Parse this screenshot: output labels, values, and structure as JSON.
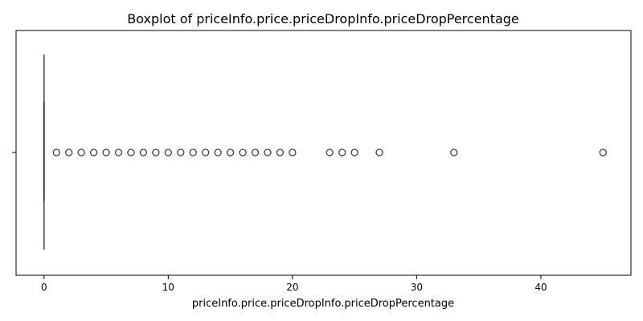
{
  "chart_data": {
    "type": "boxplot",
    "title": "Boxplot of priceInfo.price.priceDropInfo.priceDropPercentage",
    "xlabel": "priceInfo.price.priceDropInfo.priceDropPercentage",
    "ylabel": "",
    "orientation": "horizontal",
    "xlim": [
      -2.25,
      47.25
    ],
    "xticks": [
      0,
      10,
      20,
      30,
      40
    ],
    "xtick_labels": [
      "0",
      "10",
      "20",
      "30",
      "40"
    ],
    "grid": false,
    "box": {
      "q1": 0,
      "median": 0,
      "q3": 0,
      "whisker_low": 0,
      "whisker_high": 0
    },
    "outliers": [
      1,
      2,
      3,
      4,
      5,
      6,
      7,
      8,
      9,
      10,
      11,
      12,
      13,
      14,
      15,
      16,
      17,
      18,
      19,
      20,
      23,
      24,
      25,
      27,
      33,
      45
    ],
    "colors": {
      "box": "#4c72b0",
      "line": "#3f3f3f",
      "outlier_edge": "#3f3f3f"
    }
  }
}
